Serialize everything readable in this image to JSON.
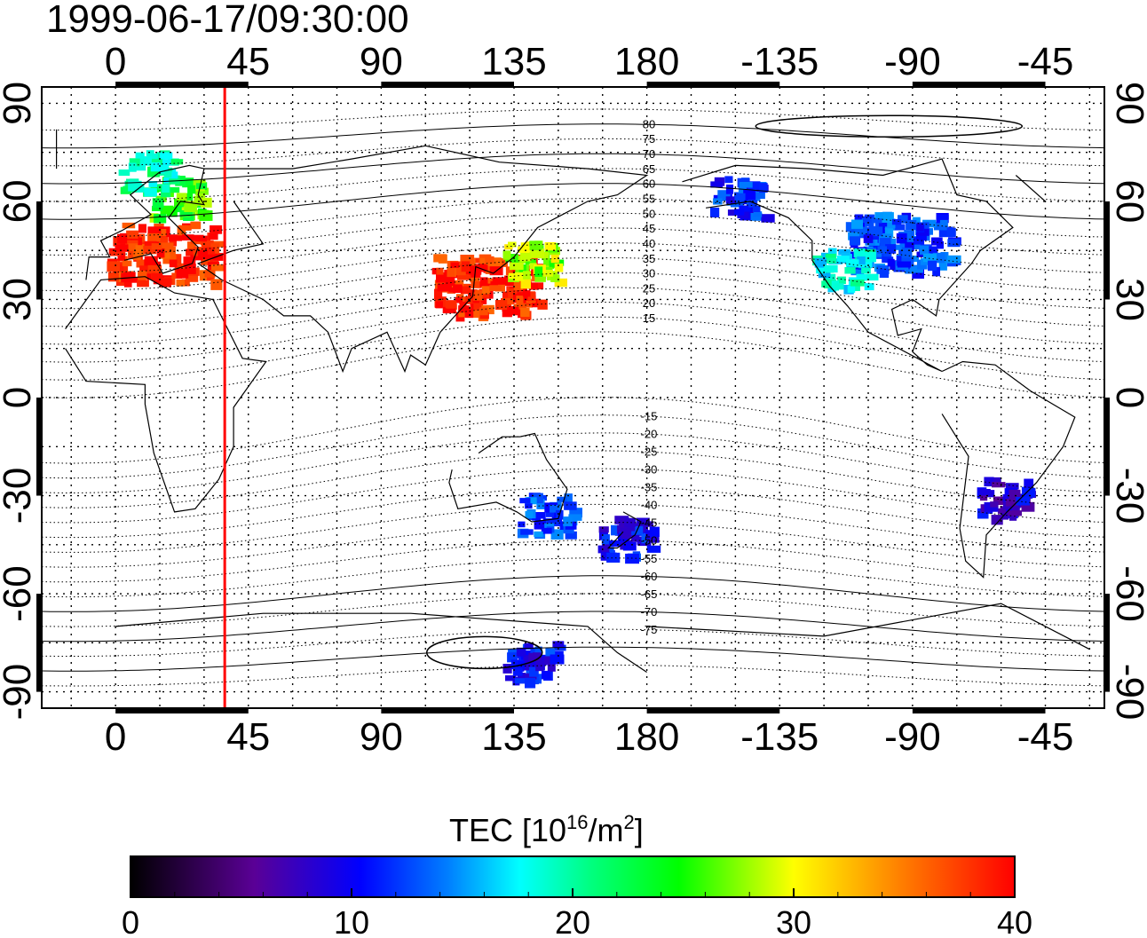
{
  "timestamp": "1999-06-17/09:30:00",
  "lon_ticks_top": [
    "0",
    "45",
    "90",
    "135",
    "180",
    "-135",
    "-90",
    "-45"
  ],
  "lon_ticks_bottom": [
    "0",
    "45",
    "90",
    "135",
    "180",
    "-135",
    "-90",
    "-45"
  ],
  "lat_ticks_left": [
    "90",
    "60",
    "30",
    "0",
    "-30",
    "-60",
    "-90"
  ],
  "lat_ticks_right": [
    "90",
    "60",
    "30",
    "0",
    "-30",
    "-60",
    "-90"
  ],
  "contour_labels": [
    "80",
    "75",
    "70",
    "65",
    "60",
    "55",
    "50",
    "45",
    "40",
    "35",
    "30",
    "25",
    "20",
    "15",
    "-15",
    "-20",
    "-25",
    "-30",
    "-35",
    "-40",
    "-45",
    "-50",
    "-55",
    "-60",
    "-65",
    "-70",
    "-75"
  ],
  "colorbar": {
    "title_prefix": "TEC  [10",
    "title_exp": "16",
    "title_mid": "/m",
    "title_exp2": "2",
    "title_suffix": "]",
    "tick_labels": [
      "0",
      "10",
      "20",
      "30",
      "40"
    ],
    "range": [
      0,
      40
    ],
    "stops": [
      "#000000",
      "#5a0096",
      "#0000ff",
      "#00ffff",
      "#00ff00",
      "#ffff00",
      "#ff8000",
      "#ff0000"
    ]
  },
  "terminator_longitude_deg": 37,
  "terminator_color": "#ff0000",
  "map": {
    "lon_range_deg": [
      -25,
      335
    ],
    "lat_range_deg": [
      -95,
      95
    ]
  },
  "tec_patches": [
    {
      "region": "Europe",
      "lon": 15,
      "lat": 45,
      "tec": 39
    },
    {
      "region": "Northern Europe",
      "lon": 20,
      "lat": 62,
      "tec": 26
    },
    {
      "region": "Scandinavia",
      "lon": 10,
      "lat": 70,
      "tec": 20
    },
    {
      "region": "East Asia",
      "lon": 125,
      "lat": 35,
      "tec": 39
    },
    {
      "region": "Japan",
      "lon": 140,
      "lat": 42,
      "tec": 28
    },
    {
      "region": "North America",
      "lon": -95,
      "lat": 48,
      "tec": 12
    },
    {
      "region": "Alaska",
      "lon": -150,
      "lat": 62,
      "tec": 11
    },
    {
      "region": "US West",
      "lon": -115,
      "lat": 40,
      "tec": 18
    },
    {
      "region": "South America",
      "lon": -60,
      "lat": -30,
      "tec": 8
    },
    {
      "region": "Australia",
      "lon": 145,
      "lat": -35,
      "tec": 12
    },
    {
      "region": "New Zealand",
      "lon": 172,
      "lat": -42,
      "tec": 10
    },
    {
      "region": "Antarctica",
      "lon": 140,
      "lat": -80,
      "tec": 10
    }
  ]
}
